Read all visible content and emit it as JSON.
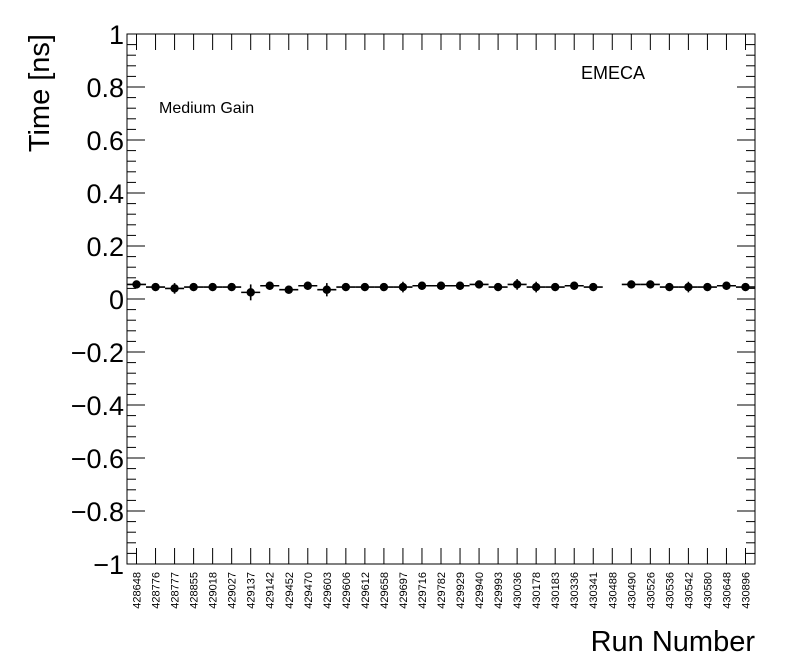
{
  "chart_data": {
    "type": "scatter",
    "xlabel": "Run Number",
    "ylabel": "Time [ns]",
    "ylim": [
      -1,
      1
    ],
    "grid": false,
    "annotations": {
      "region": "EMECA",
      "gain": "Medium Gain"
    },
    "y_ticks": [
      "1",
      "0.8",
      "0.6",
      "0.4",
      "0.2",
      "0",
      "−0.2",
      "−0.4",
      "−0.6",
      "−0.8",
      "−1"
    ],
    "y_tick_values": [
      1,
      0.8,
      0.6,
      0.4,
      0.2,
      0,
      -0.2,
      -0.4,
      -0.6,
      -0.8,
      -1
    ],
    "categories": [
      "428648",
      "428776",
      "428777",
      "428855",
      "429018",
      "429027",
      "429137",
      "429142",
      "429452",
      "429470",
      "429603",
      "429606",
      "429612",
      "429658",
      "429697",
      "429716",
      "429782",
      "429929",
      "429940",
      "429993",
      "430036",
      "430178",
      "430183",
      "430336",
      "430341",
      "430488",
      "430490",
      "430526",
      "430536",
      "430542",
      "430580",
      "430648",
      "430896"
    ],
    "series": [
      {
        "values": [
          0.055,
          0.045,
          0.04,
          0.045,
          0.045,
          0.045,
          0.025,
          0.05,
          0.035,
          0.05,
          0.035,
          0.045,
          0.045,
          0.045,
          0.045,
          0.05,
          0.05,
          0.05,
          0.055,
          0.045,
          0.055,
          0.045,
          0.045,
          0.05,
          0.045,
          null,
          0.055,
          0.055,
          0.045,
          0.045,
          0.045,
          0.05,
          0.045
        ],
        "errors": [
          0.015,
          0.015,
          0.02,
          0.015,
          0.015,
          0.015,
          0.03,
          0.015,
          0.015,
          0.015,
          0.025,
          0.015,
          0.015,
          0.015,
          0.02,
          0.015,
          0.015,
          0.015,
          0.015,
          0.015,
          0.02,
          0.02,
          0.015,
          0.015,
          0.015,
          null,
          0.015,
          0.015,
          0.015,
          0.02,
          0.015,
          0.015,
          0.015
        ]
      }
    ]
  }
}
